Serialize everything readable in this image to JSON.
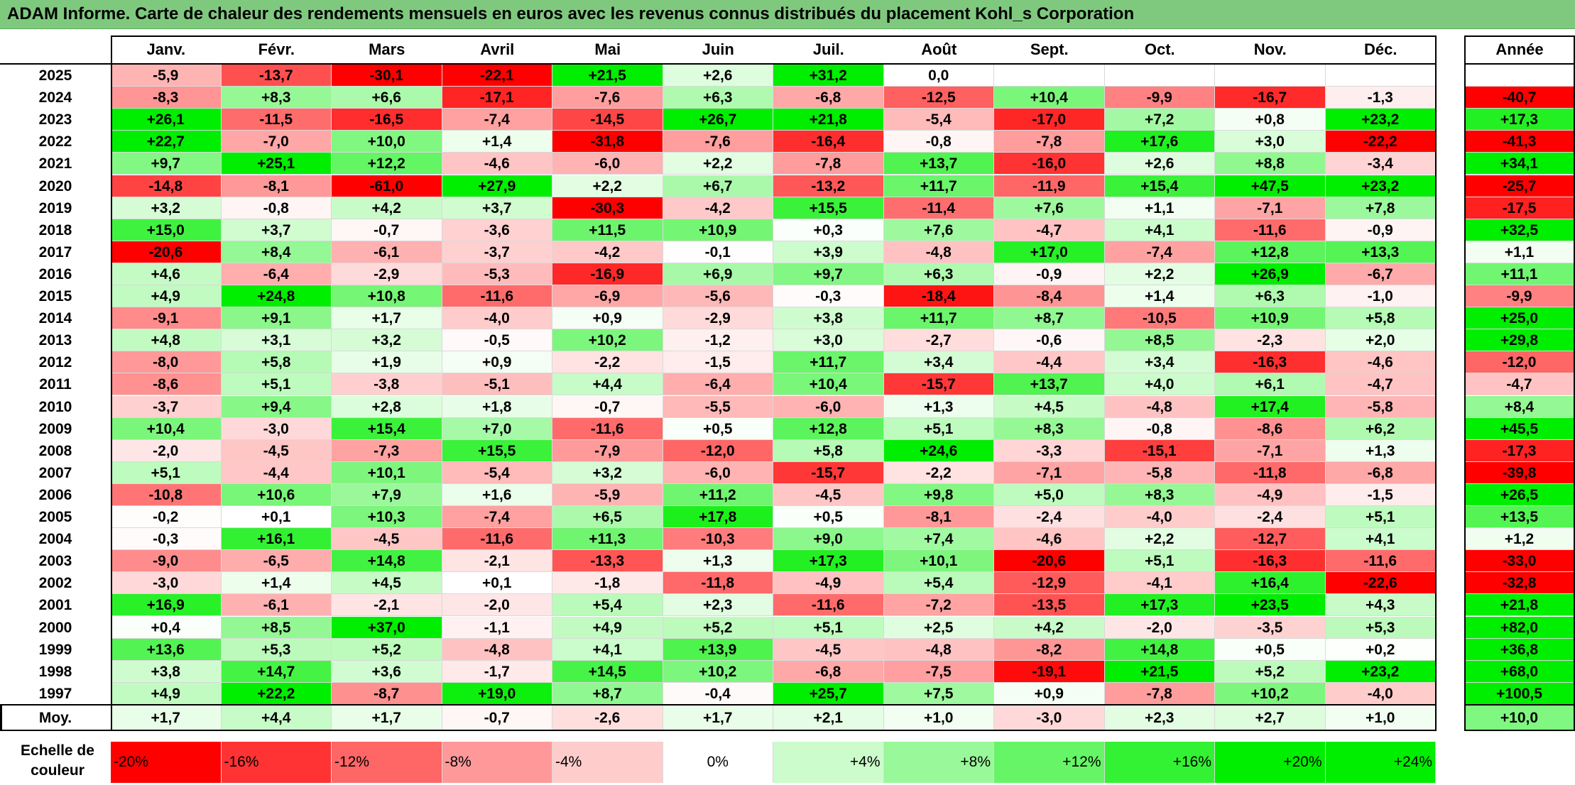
{
  "title": "ADAM Informe. Carte de chaleur des rendements mensuels en euros avec les revenus connus distribués du placement Kohl_s Corporation",
  "chart_data": {
    "type": "heatmap",
    "title": "ADAM Informe. Carte de chaleur des rendements mensuels en euros avec les revenus connus distribués du placement Kohl_s Corporation",
    "columns": [
      "Janv.",
      "Févr.",
      "Mars",
      "Avril",
      "Mai",
      "Juin",
      "Juil.",
      "Août",
      "Sept.",
      "Oct.",
      "Nov.",
      "Déc."
    ],
    "year_column": "Année",
    "rows": [
      {
        "year": "2025",
        "values": [
          "-5,9",
          "-13,7",
          "-30,1",
          "-22,1",
          "+21,5",
          "+2,6",
          "+31,2",
          "0,0",
          "",
          "",
          "",
          ""
        ],
        "annual": ""
      },
      {
        "year": "2024",
        "values": [
          "-8,3",
          "+8,3",
          "+6,6",
          "-17,1",
          "-7,6",
          "+6,3",
          "-6,8",
          "-12,5",
          "+10,4",
          "-9,9",
          "-16,7",
          "-1,3"
        ],
        "annual": "-40,7"
      },
      {
        "year": "2023",
        "values": [
          "+26,1",
          "-11,5",
          "-16,5",
          "-7,4",
          "-14,5",
          "+26,7",
          "+21,8",
          "-5,4",
          "-17,0",
          "+7,2",
          "+0,8",
          "+23,2"
        ],
        "annual": "+17,3"
      },
      {
        "year": "2022",
        "values": [
          "+22,7",
          "-7,0",
          "+10,0",
          "+1,4",
          "-31,8",
          "-7,6",
          "-16,4",
          "-0,8",
          "-7,8",
          "+17,6",
          "+3,0",
          "-22,2"
        ],
        "annual": "-41,3"
      },
      {
        "year": "2021",
        "values": [
          "+9,7",
          "+25,1",
          "+12,2",
          "-4,6",
          "-6,0",
          "+2,2",
          "-7,8",
          "+13,7",
          "-16,0",
          "+2,6",
          "+8,8",
          "-3,4"
        ],
        "annual": "+34,1"
      },
      {
        "year": "2020",
        "values": [
          "-14,8",
          "-8,1",
          "-61,0",
          "+27,9",
          "+2,2",
          "+6,7",
          "-13,2",
          "+11,7",
          "-11,9",
          "+15,4",
          "+47,5",
          "+23,2"
        ],
        "annual": "-25,7"
      },
      {
        "year": "2019",
        "values": [
          "+3,2",
          "-0,8",
          "+4,2",
          "+3,7",
          "-30,3",
          "-4,2",
          "+15,5",
          "-11,4",
          "+7,6",
          "+1,1",
          "-7,1",
          "+7,8"
        ],
        "annual": "-17,5"
      },
      {
        "year": "2018",
        "values": [
          "+15,0",
          "+3,7",
          "-0,7",
          "-3,6",
          "+11,5",
          "+10,9",
          "+0,3",
          "+7,6",
          "-4,7",
          "+4,1",
          "-11,6",
          "-0,9"
        ],
        "annual": "+32,5"
      },
      {
        "year": "2017",
        "values": [
          "-20,6",
          "+8,4",
          "-6,1",
          "-3,7",
          "-4,2",
          "-0,1",
          "+3,9",
          "-4,8",
          "+17,0",
          "-7,4",
          "+12,8",
          "+13,3"
        ],
        "annual": "+1,1"
      },
      {
        "year": "2016",
        "values": [
          "+4,6",
          "-6,4",
          "-2,9",
          "-5,3",
          "-16,9",
          "+6,9",
          "+9,7",
          "+6,3",
          "-0,9",
          "+2,2",
          "+26,9",
          "-6,7"
        ],
        "annual": "+11,1"
      },
      {
        "year": "2015",
        "values": [
          "+4,9",
          "+24,8",
          "+10,8",
          "-11,6",
          "-6,9",
          "-5,6",
          "-0,3",
          "-18,4",
          "-8,4",
          "+1,4",
          "+6,3",
          "-1,0"
        ],
        "annual": "-9,9"
      },
      {
        "year": "2014",
        "values": [
          "-9,1",
          "+9,1",
          "+1,7",
          "-4,0",
          "+0,9",
          "-2,9",
          "+3,8",
          "+11,7",
          "+8,7",
          "-10,5",
          "+10,9",
          "+5,8"
        ],
        "annual": "+25,0"
      },
      {
        "year": "2013",
        "values": [
          "+4,8",
          "+3,1",
          "+3,2",
          "-0,5",
          "+10,2",
          "-1,2",
          "+3,0",
          "-2,7",
          "-0,6",
          "+8,5",
          "-2,3",
          "+2,0"
        ],
        "annual": "+29,8"
      },
      {
        "year": "2012",
        "values": [
          "-8,0",
          "+5,8",
          "+1,9",
          "+0,9",
          "-2,2",
          "-1,5",
          "+11,7",
          "+3,4",
          "-4,4",
          "+3,4",
          "-16,3",
          "-4,6"
        ],
        "annual": "-12,0"
      },
      {
        "year": "2011",
        "values": [
          "-8,6",
          "+5,1",
          "-3,8",
          "-5,1",
          "+4,4",
          "-6,4",
          "+10,4",
          "-15,7",
          "+13,7",
          "+4,0",
          "+6,1",
          "-4,7"
        ],
        "annual": "-4,7"
      },
      {
        "year": "2010",
        "values": [
          "-3,7",
          "+9,4",
          "+2,8",
          "+1,8",
          "-0,7",
          "-5,5",
          "-6,0",
          "+1,3",
          "+4,5",
          "-4,8",
          "+17,4",
          "-5,8"
        ],
        "annual": "+8,4"
      },
      {
        "year": "2009",
        "values": [
          "+10,4",
          "-3,0",
          "+15,4",
          "+7,0",
          "-11,6",
          "+0,5",
          "+12,8",
          "+5,1",
          "+8,3",
          "-0,8",
          "-8,6",
          "+6,2"
        ],
        "annual": "+45,5"
      },
      {
        "year": "2008",
        "values": [
          "-2,0",
          "-4,5",
          "-7,3",
          "+15,5",
          "-7,9",
          "-12,0",
          "+5,8",
          "+24,6",
          "-3,3",
          "-15,1",
          "-7,1",
          "+1,3"
        ],
        "annual": "-17,3"
      },
      {
        "year": "2007",
        "values": [
          "+5,1",
          "-4,4",
          "+10,1",
          "-5,4",
          "+3,2",
          "-6,0",
          "-15,7",
          "-2,2",
          "-7,1",
          "-5,8",
          "-11,8",
          "-6,8"
        ],
        "annual": "-39,8"
      },
      {
        "year": "2006",
        "values": [
          "-10,8",
          "+10,6",
          "+7,9",
          "+1,6",
          "-5,9",
          "+11,2",
          "-4,5",
          "+9,8",
          "+5,0",
          "+8,3",
          "-4,9",
          "-1,5"
        ],
        "annual": "+26,5"
      },
      {
        "year": "2005",
        "values": [
          "-0,2",
          "+0,1",
          "+10,3",
          "-7,4",
          "+6,5",
          "+17,8",
          "+0,5",
          "-8,1",
          "-2,4",
          "-4,0",
          "-2,4",
          "+5,1"
        ],
        "annual": "+13,5"
      },
      {
        "year": "2004",
        "values": [
          "-0,3",
          "+16,1",
          "-4,5",
          "-11,6",
          "+11,3",
          "-10,3",
          "+9,0",
          "+7,4",
          "-4,6",
          "+2,2",
          "-12,7",
          "+4,1"
        ],
        "annual": "+1,2"
      },
      {
        "year": "2003",
        "values": [
          "-9,0",
          "-6,5",
          "+14,8",
          "-2,1",
          "-13,3",
          "+1,3",
          "+17,3",
          "+10,1",
          "-20,6",
          "+5,1",
          "-16,3",
          "-11,6"
        ],
        "annual": "-33,0"
      },
      {
        "year": "2002",
        "values": [
          "-3,0",
          "+1,4",
          "+4,5",
          "+0,1",
          "-1,8",
          "-11,8",
          "-4,9",
          "+5,4",
          "-12,9",
          "-4,1",
          "+16,4",
          "-22,6"
        ],
        "annual": "-32,8"
      },
      {
        "year": "2001",
        "values": [
          "+16,9",
          "-6,1",
          "-2,1",
          "-2,0",
          "+5,4",
          "+2,3",
          "-11,6",
          "-7,2",
          "-13,5",
          "+17,3",
          "+23,5",
          "+4,3"
        ],
        "annual": "+21,8"
      },
      {
        "year": "2000",
        "values": [
          "+0,4",
          "+8,5",
          "+37,0",
          "-1,1",
          "+4,9",
          "+5,2",
          "+5,1",
          "+2,5",
          "+4,2",
          "-2,0",
          "-3,5",
          "+5,3"
        ],
        "annual": "+82,0"
      },
      {
        "year": "1999",
        "values": [
          "+13,6",
          "+5,3",
          "+5,2",
          "-4,8",
          "+4,1",
          "+13,9",
          "-4,5",
          "-4,8",
          "-8,2",
          "+14,8",
          "+0,5",
          "+0,2"
        ],
        "annual": "+36,8"
      },
      {
        "year": "1998",
        "values": [
          "+3,8",
          "+14,7",
          "+3,6",
          "-1,7",
          "+14,5",
          "+10,2",
          "-6,8",
          "-7,5",
          "-19,1",
          "+21,5",
          "+5,2",
          "+23,2"
        ],
        "annual": "+68,0"
      },
      {
        "year": "1997",
        "values": [
          "+4,9",
          "+22,2",
          "-8,7",
          "+19,0",
          "+8,7",
          "-0,4",
          "+25,7",
          "+7,5",
          "+0,9",
          "-7,8",
          "+10,2",
          "-4,0"
        ],
        "annual": "+100,5"
      }
    ],
    "average": {
      "label": "Moy.",
      "values": [
        "+1,7",
        "+4,4",
        "+1,7",
        "-0,7",
        "-2,6",
        "+1,7",
        "+2,1",
        "+1,0",
        "-3,0",
        "+2,3",
        "+2,7",
        "+1,0"
      ],
      "annual": "+10,0"
    },
    "color_scale": {
      "label": "Echelle de couleur",
      "steps": [
        "-20%",
        "-16%",
        "-12%",
        "-8%",
        "-4%",
        "0%",
        "+4%",
        "+8%",
        "+12%",
        "+16%",
        "+20%",
        "+24%"
      ],
      "negative_color": "#ff0000",
      "positive_color": "#00ee00",
      "neutral_color": "#ffffff"
    }
  }
}
